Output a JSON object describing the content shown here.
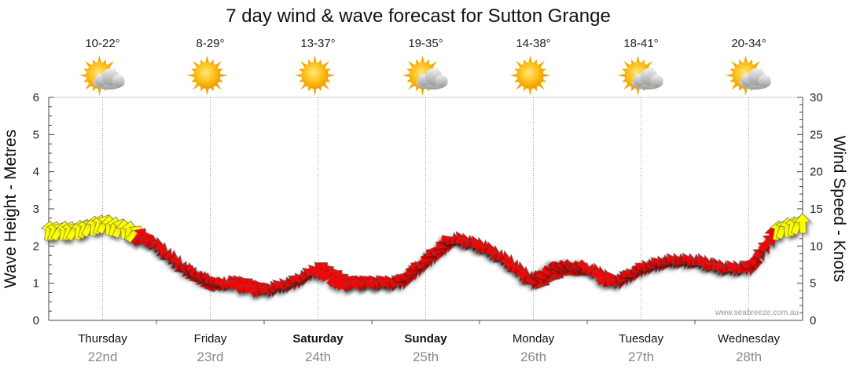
{
  "chart_data": {
    "type": "line",
    "title": "7 day wind & wave forecast for Sutton Grange",
    "ylabel_left": "Wave Height - Metres",
    "ylabel_right": "Wind Speed - Knots",
    "yleft_ticks": [
      "0",
      "1",
      "2",
      "3",
      "4",
      "5",
      "6"
    ],
    "yright_ticks": [
      "0",
      "5",
      "10",
      "15",
      "20",
      "25",
      "30"
    ],
    "ylim_left": [
      0,
      6
    ],
    "ylim_right": [
      0,
      30
    ],
    "grid": true,
    "days": [
      {
        "name": "Thursday",
        "date": "22nd",
        "temp": "10-22°",
        "icon": "sun-cloud-icon",
        "bold": false
      },
      {
        "name": "Friday",
        "date": "23rd",
        "temp": "8-29°",
        "icon": "sun-icon",
        "bold": false
      },
      {
        "name": "Saturday",
        "date": "24th",
        "temp": "13-37°",
        "icon": "sun-icon",
        "bold": true
      },
      {
        "name": "Sunday",
        "date": "25th",
        "temp": "19-35°",
        "icon": "sun-cloud-icon",
        "bold": true
      },
      {
        "name": "Monday",
        "date": "26th",
        "temp": "14-38°",
        "icon": "sun-icon",
        "bold": false
      },
      {
        "name": "Tuesday",
        "date": "27th",
        "temp": "18-41°",
        "icon": "sun-cloud-icon",
        "bold": false
      },
      {
        "name": "Wednesday",
        "date": "28th",
        "temp": "20-34°",
        "icon": "sun-cloud-icon",
        "bold": false
      }
    ],
    "series": [
      {
        "name": "Wind Speed",
        "unit": "knots",
        "colors": {
          "light": "#ffff00",
          "strong": "#ff0000",
          "outline": "#555555"
        },
        "x_day_fraction": [
          0.0,
          0.25,
          0.5,
          0.75,
          1.0,
          1.25,
          1.5,
          1.75,
          2.0,
          2.25,
          2.5,
          2.75,
          3.0,
          3.25,
          3.5,
          3.75,
          4.0,
          4.25,
          4.5,
          4.75,
          5.0,
          5.25,
          5.5,
          5.75,
          6.0,
          6.25,
          6.5,
          6.75,
          7.0
        ],
        "knots": [
          12,
          12,
          13,
          12,
          10,
          7,
          5,
          5,
          4,
          5,
          7,
          5,
          5,
          5,
          8,
          11,
          10,
          8,
          5,
          7,
          7,
          5,
          7,
          8,
          8,
          7,
          7,
          12,
          13
        ],
        "direction_deg": [
          200,
          200,
          195,
          190,
          300,
          310,
          320,
          240,
          250,
          260,
          240,
          230,
          250,
          260,
          250,
          270,
          280,
          300,
          290,
          310,
          300,
          250,
          260,
          270,
          280,
          270,
          260,
          190,
          190
        ]
      }
    ]
  },
  "credit": "www.seabreeze.com.au"
}
